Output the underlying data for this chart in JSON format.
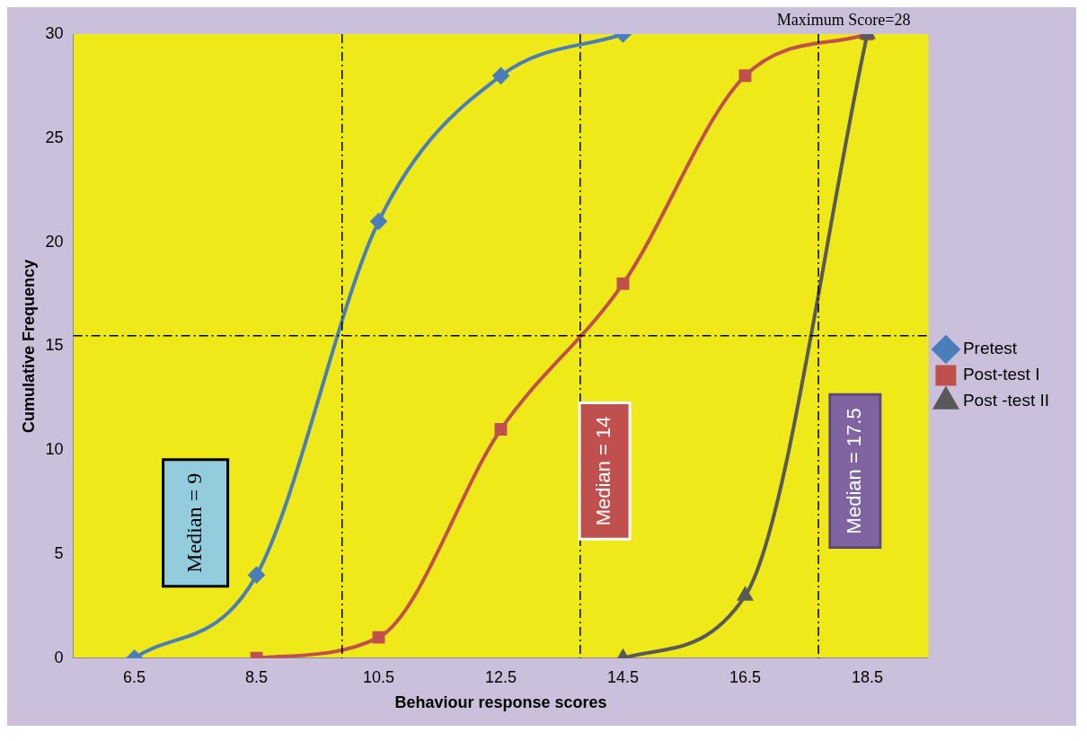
{
  "chart_data": {
    "type": "line",
    "xlabel": "Behaviour response scores",
    "ylabel": "Cumulative Frequency",
    "x": [
      6.5,
      8.5,
      10.5,
      12.5,
      14.5,
      16.5,
      18.5
    ],
    "xlim": [
      5.5,
      19.5
    ],
    "xticks": [
      6.5,
      8.5,
      10.5,
      12.5,
      14.5,
      16.5,
      18.5
    ],
    "ylim": [
      0,
      30
    ],
    "yticks": [
      0,
      5,
      10,
      15,
      20,
      25,
      30
    ],
    "series": [
      {
        "name": "Pretest",
        "color": "#4a7ebb",
        "marker": "diamond",
        "values": [
          0,
          4,
          21,
          28,
          30,
          null,
          null
        ]
      },
      {
        "name": "Post-test I",
        "color": "#c0504d",
        "marker": "square",
        "values": [
          null,
          0,
          1,
          11,
          18,
          28,
          30
        ]
      },
      {
        "name": "Post -test II",
        "color": "#595959",
        "marker": "triangle",
        "values": [
          null,
          null,
          null,
          null,
          0,
          3,
          30
        ]
      }
    ],
    "ref_lines": [
      {
        "axis": "y",
        "value": 15.5,
        "line_style": "dashed",
        "color": "#000000"
      },
      {
        "axis": "x",
        "value": 9.9,
        "line_style": "dashed",
        "color": "#000000"
      },
      {
        "axis": "x",
        "value": 13.8,
        "line_style": "dashed",
        "color": "#000000"
      },
      {
        "axis": "x",
        "value": 17.7,
        "line_style": "dashed",
        "color": "#000000"
      }
    ],
    "annotations": [
      "Maximum Score=28",
      "Median = 9",
      "Median = 14",
      "Median = 17.5"
    ],
    "legend": "right",
    "grid": false,
    "line_style": "solid"
  }
}
